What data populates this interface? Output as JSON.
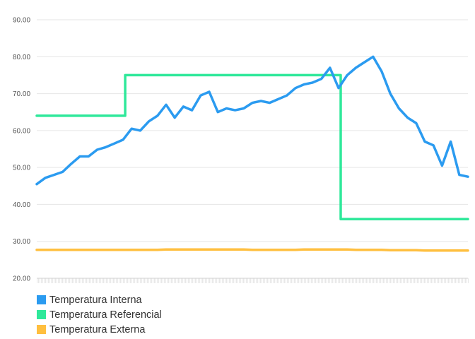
{
  "chart_data": {
    "type": "line",
    "ylim": [
      20,
      90
    ],
    "yticks": [
      "20.00",
      "30.00",
      "40.00",
      "50.00",
      "60.00",
      "70.00",
      "80.00",
      "90.00"
    ],
    "x": [
      0,
      2,
      4,
      6,
      8,
      10,
      12,
      14,
      16,
      18,
      20,
      22,
      24,
      26,
      28,
      30,
      32,
      34,
      36,
      38,
      40,
      42,
      44,
      46,
      48,
      50,
      52,
      54,
      56,
      58,
      60,
      62,
      64,
      66,
      68,
      70,
      72,
      74,
      76,
      78,
      80,
      82,
      84,
      86,
      88,
      90,
      92,
      94,
      96,
      98,
      100
    ],
    "grid": true,
    "legend_position": "bottom-left",
    "series": [
      {
        "name": "Temperatura Interna",
        "color": "#2b9bf0",
        "values": [
          45.5,
          47.2,
          48.0,
          48.8,
          51.0,
          53.0,
          53.0,
          54.8,
          55.5,
          56.5,
          57.5,
          60.5,
          60.0,
          62.5,
          64.0,
          67.0,
          63.5,
          66.5,
          65.5,
          69.5,
          70.5,
          65.0,
          66.0,
          65.5,
          66.0,
          67.5,
          68.0,
          67.5,
          68.5,
          69.5,
          71.5,
          72.5,
          73.0,
          74.0,
          77.0,
          71.5,
          75.0,
          77.0,
          78.5,
          80.0,
          76.0,
          70.0,
          66.0,
          63.5,
          62.0,
          57.0,
          56.0,
          50.5,
          57.0,
          48.0,
          47.5
        ]
      },
      {
        "name": "Temperatura Referencial",
        "color": "#2ee89a",
        "values": [
          64,
          64,
          64,
          64,
          64,
          64,
          64,
          64,
          64,
          64,
          64,
          64,
          64,
          64,
          64,
          64,
          64,
          64,
          64,
          64,
          64,
          75,
          75,
          75,
          75,
          75,
          75,
          75,
          75,
          75,
          75,
          75,
          75,
          75,
          75,
          75,
          75,
          75,
          75,
          75,
          75,
          36,
          36,
          36,
          36,
          36,
          36,
          36,
          36,
          36,
          36
        ],
        "step_x": [
          0,
          20.5,
          20.5,
          70.5,
          70.5,
          100
        ],
        "step_y": [
          64,
          64,
          75,
          75,
          36,
          36
        ]
      },
      {
        "name": "Temperatura Externa",
        "color": "#ffbf3f",
        "values": [
          27.7,
          27.7,
          27.7,
          27.7,
          27.7,
          27.7,
          27.7,
          27.7,
          27.7,
          27.7,
          27.7,
          27.7,
          27.7,
          27.7,
          27.7,
          27.8,
          27.8,
          27.8,
          27.8,
          27.8,
          27.8,
          27.8,
          27.8,
          27.8,
          27.8,
          27.7,
          27.7,
          27.7,
          27.7,
          27.7,
          27.7,
          27.8,
          27.8,
          27.8,
          27.8,
          27.8,
          27.8,
          27.7,
          27.7,
          27.7,
          27.7,
          27.6,
          27.6,
          27.6,
          27.6,
          27.5,
          27.5,
          27.5,
          27.5,
          27.5,
          27.5
        ]
      }
    ]
  }
}
